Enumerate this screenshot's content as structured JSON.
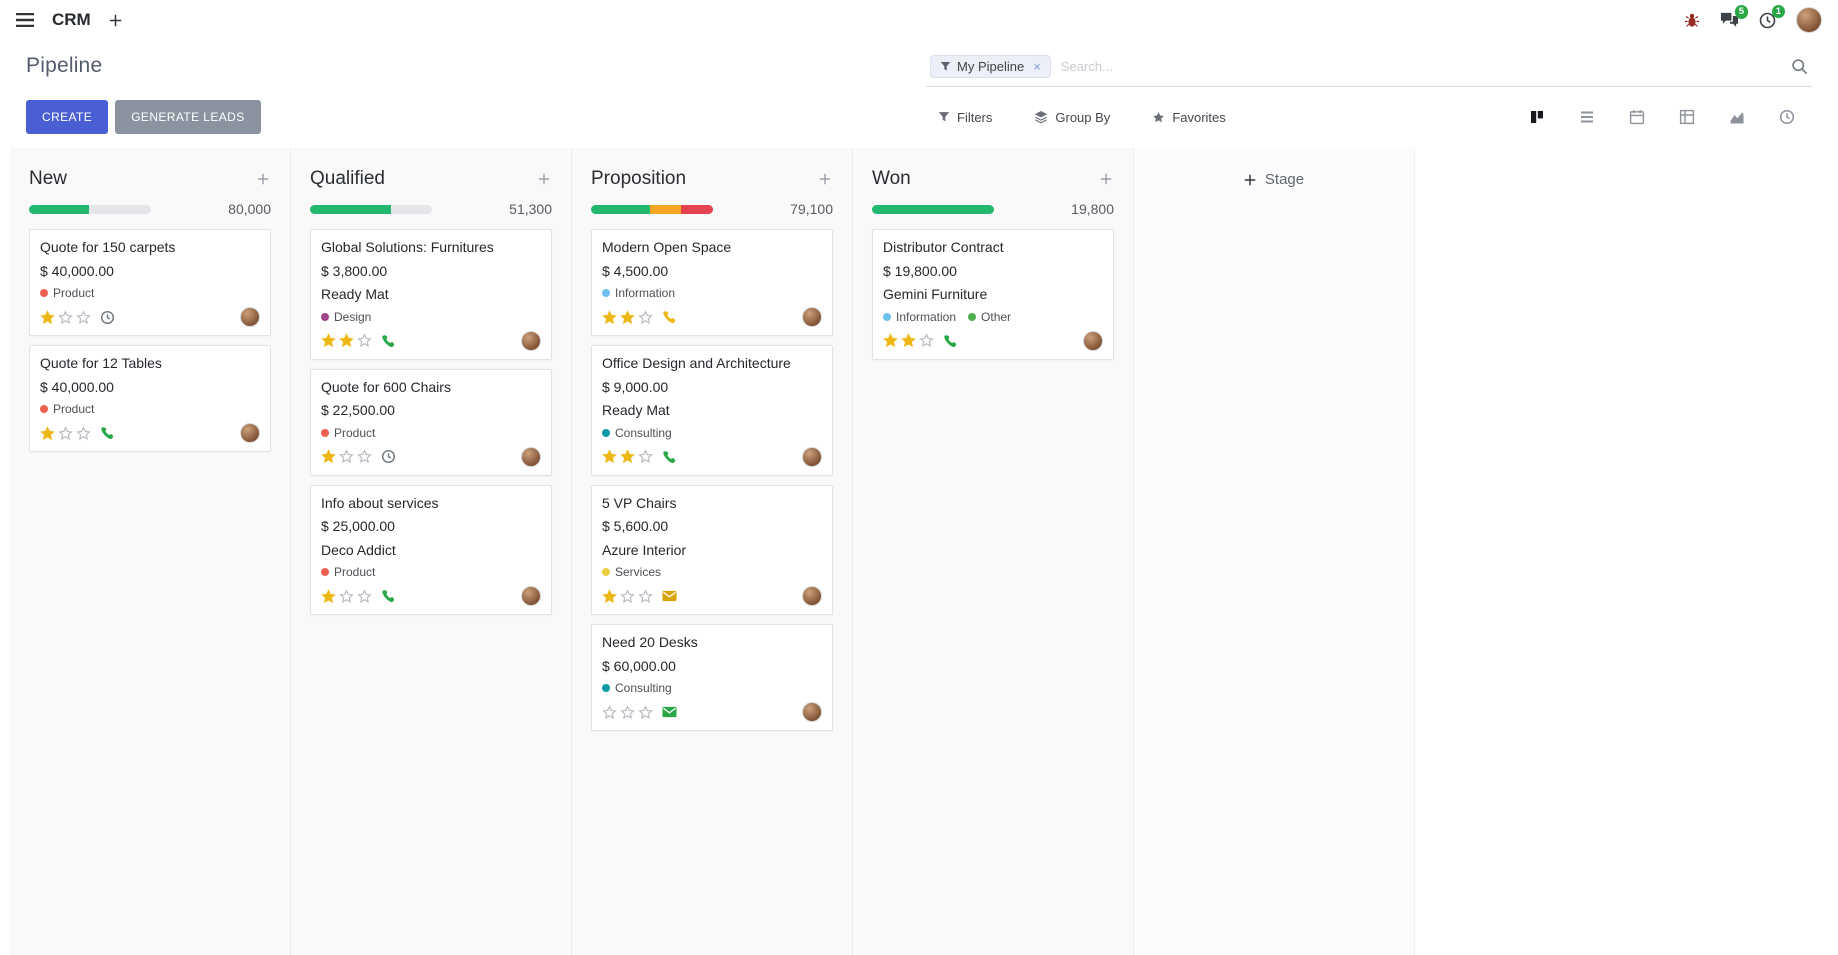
{
  "palette": {
    "primary": "#4a5fd3",
    "secondary_button": "#8b93a0",
    "success": "#28a745",
    "warning": "#f5a623",
    "danger": "#e2434f",
    "star_gold": "#edb716",
    "badge_green": "#28a745"
  },
  "topbar": {
    "app_name": "CRM",
    "messages_badge": "5",
    "activities_badge": "1"
  },
  "control_panel": {
    "title": "Pipeline",
    "search": {
      "facet_label": "My Pipeline",
      "remove_label": "×",
      "placeholder": "Search..."
    },
    "create_label": "CREATE",
    "generate_leads_label": "GENERATE LEADS",
    "filters_label": "Filters",
    "group_by_label": "Group By",
    "favorites_label": "Favorites"
  },
  "board": {
    "add_stage_label": "Stage",
    "columns": [
      {
        "name": "New",
        "total": "80,000",
        "progress": [
          {
            "color": "#24b76f",
            "pct": 49
          }
        ],
        "cards": [
          {
            "title": "Quote for 150 carpets",
            "amount": "$ 40,000.00",
            "tags": [
              {
                "label": "Product",
                "color": "#f06050"
              }
            ],
            "stars": 1,
            "activity": {
              "type": "clock",
              "color": "#6c757d"
            }
          },
          {
            "title": "Quote for 12 Tables",
            "amount": "$ 40,000.00",
            "tags": [
              {
                "label": "Product",
                "color": "#f06050"
              }
            ],
            "stars": 1,
            "activity": {
              "type": "phone",
              "color": "#28a745"
            }
          }
        ]
      },
      {
        "name": "Qualified",
        "total": "51,300",
        "progress": [
          {
            "color": "#24b76f",
            "pct": 66
          }
        ],
        "cards": [
          {
            "title": "Global Solutions: Furnitures",
            "amount": "$ 3,800.00",
            "partner": "Ready Mat",
            "tags": [
              {
                "label": "Design",
                "color": "#a24689"
              }
            ],
            "stars": 2,
            "activity": {
              "type": "phone",
              "color": "#28a745"
            }
          },
          {
            "title": "Quote for 600 Chairs",
            "amount": "$ 22,500.00",
            "tags": [
              {
                "label": "Product",
                "color": "#f06050"
              }
            ],
            "stars": 1,
            "activity": {
              "type": "clock",
              "color": "#6c757d"
            }
          },
          {
            "title": "Info about services",
            "amount": "$ 25,000.00",
            "partner": "Deco Addict",
            "tags": [
              {
                "label": "Product",
                "color": "#f06050"
              }
            ],
            "stars": 1,
            "activity": {
              "type": "phone",
              "color": "#28a745"
            }
          }
        ]
      },
      {
        "name": "Proposition",
        "total": "79,100",
        "progress": [
          {
            "color": "#24b76f",
            "pct": 48
          },
          {
            "color": "#f5a623",
            "pct": 26
          },
          {
            "color": "#e2434f",
            "pct": 26
          }
        ],
        "cards": [
          {
            "title": "Modern Open Space",
            "amount": "$ 4,500.00",
            "tags": [
              {
                "label": "Information",
                "color": "#6cc1ed"
              }
            ],
            "stars": 2,
            "activity": {
              "type": "phone",
              "color": "#edb716"
            }
          },
          {
            "title": "Office Design and Architecture",
            "amount": "$ 9,000.00",
            "partner": "Ready Mat",
            "tags": [
              {
                "label": "Consulting",
                "color": "#0e9aa7"
              }
            ],
            "stars": 2,
            "activity": {
              "type": "phone",
              "color": "#28a745"
            }
          },
          {
            "title": "5 VP Chairs",
            "amount": "$ 5,600.00",
            "partner": "Azure Interior",
            "tags": [
              {
                "label": "Services",
                "color": "#edce45"
              }
            ],
            "stars": 1,
            "activity": {
              "type": "envelope",
              "color": "#d9a406"
            }
          },
          {
            "title": "Need 20 Desks",
            "amount": "$ 60,000.00",
            "tags": [
              {
                "label": "Consulting",
                "color": "#0e9aa7"
              }
            ],
            "stars": 0,
            "activity": {
              "type": "envelope",
              "color": "#28a745"
            }
          }
        ]
      },
      {
        "name": "Won",
        "total": "19,800",
        "progress": [
          {
            "color": "#24b76f",
            "pct": 100
          }
        ],
        "cards": [
          {
            "title": "Distributor Contract",
            "amount": "$ 19,800.00",
            "partner": "Gemini Furniture",
            "tags": [
              {
                "label": "Information",
                "color": "#6cc1ed"
              },
              {
                "label": "Other",
                "color": "#4caf50"
              }
            ],
            "stars": 2,
            "activity": {
              "type": "phone",
              "color": "#28a745"
            }
          }
        ]
      }
    ]
  }
}
